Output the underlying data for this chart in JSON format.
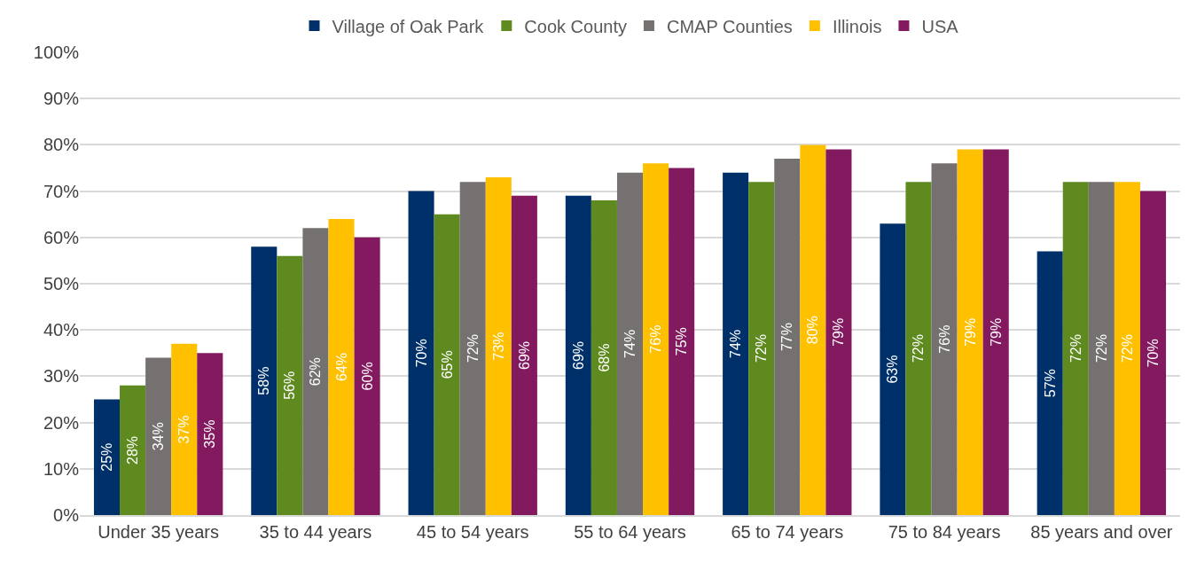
{
  "chart_data": {
    "type": "bar",
    "categories": [
      "Under 35 years",
      "35 to 44 years",
      "45 to 54 years",
      "55 to 64 years",
      "65 to 74 years",
      "75 to 84 years",
      "85 years and over"
    ],
    "series": [
      {
        "name": "Village of Oak Park",
        "color": "#003069",
        "values": [
          25,
          58,
          70,
          69,
          74,
          63,
          57
        ],
        "value_labels": [
          "25%",
          "58%",
          "70%",
          "69%",
          "74%",
          "63%",
          "57%"
        ]
      },
      {
        "name": "Cook County",
        "color": "#5e8a1f",
        "values": [
          28,
          56,
          65,
          68,
          72,
          72,
          72
        ],
        "value_labels": [
          "28%",
          "56%",
          "65%",
          "68%",
          "72%",
          "72%",
          "72%"
        ]
      },
      {
        "name": "CMAP Counties",
        "color": "#767171",
        "values": [
          34,
          62,
          72,
          74,
          77,
          76,
          72
        ],
        "value_labels": [
          "34%",
          "62%",
          "72%",
          "74%",
          "77%",
          "76%",
          "72%"
        ]
      },
      {
        "name": "Illinois",
        "color": "#ffc000",
        "values": [
          37,
          64,
          73,
          76,
          80,
          79,
          72
        ],
        "value_labels": [
          "37%",
          "64%",
          "73%",
          "76%",
          "80%",
          "79%",
          "72%"
        ]
      },
      {
        "name": "USA",
        "color": "#83195f",
        "values": [
          35,
          60,
          69,
          75,
          79,
          79,
          70
        ],
        "value_labels": [
          "35%",
          "60%",
          "69%",
          "75%",
          "79%",
          "79%",
          "70%"
        ]
      }
    ],
    "ylim": [
      0,
      100
    ],
    "yticks": [
      {
        "value": 0,
        "label": "0%"
      },
      {
        "value": 10,
        "label": "10%"
      },
      {
        "value": 20,
        "label": "20%"
      },
      {
        "value": 30,
        "label": "30%"
      },
      {
        "value": 40,
        "label": "40%"
      },
      {
        "value": 50,
        "label": "50%"
      },
      {
        "value": 60,
        "label": "60%"
      },
      {
        "value": 70,
        "label": "70%"
      },
      {
        "value": 80,
        "label": "80%"
      },
      {
        "value": 90,
        "label": "90%"
      },
      {
        "value": 100,
        "label": "100%"
      }
    ],
    "grid": "y",
    "legend": "top"
  }
}
